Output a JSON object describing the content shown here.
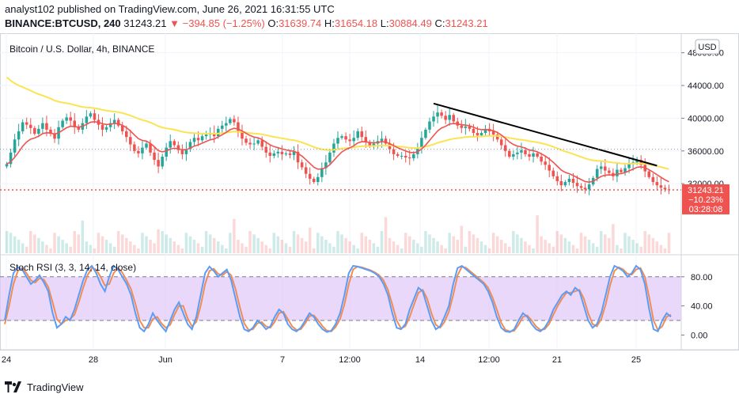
{
  "header": {
    "publisher_line": "analyst102 published on TradingView.com, June 26, 2021 16:31:55 UTC",
    "symbol": "BINANCE:BTCUSD, 240",
    "last": "31243.21",
    "change": "−394.85 (−1.25%)",
    "o_label": "O:",
    "o_value": "31639.74",
    "h_label": "H:",
    "h_value": "31654.18",
    "l_label": "L:",
    "l_value": "30884.49",
    "c_label": "C:",
    "c_value": "31243.21"
  },
  "main_pane": {
    "title": "Bitcoin / U.S. Dollar, 4h, BINANCE",
    "currency_button": "USD",
    "price_tag": {
      "price": "31243.21",
      "pct": "−10.23%",
      "countdown": "03:28:08"
    },
    "colors": {
      "up": "#26a69a",
      "down": "#ef5350",
      "ma_fast": "#ef5350",
      "ma_slow": "#fbe351",
      "trendline": "#000000"
    }
  },
  "rsi_pane": {
    "title": "Stoch RSI (3, 3, 14, 14, close)",
    "colors": {
      "k": "#5b9cf6",
      "d": "#f08d55",
      "band": "#e1c8fa"
    }
  },
  "footer": {
    "brand": "TradingView"
  },
  "chart_data": [
    {
      "type": "candlestick",
      "y_ticks": [
        48000,
        44000,
        40000,
        36000,
        32000
      ],
      "y_tick_labels": [
        "48000.00",
        "44000.00",
        "40000.00",
        "36000.00",
        "32000.00"
      ],
      "ylim": [
        23500,
        50000
      ],
      "x_tick_labels": [
        "24",
        "28",
        "Jun",
        "7",
        "12:00",
        "14",
        "12:00",
        "21",
        "25"
      ],
      "close": [
        34400,
        35800,
        37400,
        38400,
        39500,
        39200,
        38800,
        38100,
        38700,
        39400,
        38600,
        38100,
        37500,
        38900,
        39700,
        40100,
        39700,
        38900,
        38600,
        39400,
        40200,
        40600,
        39800,
        39200,
        38600,
        38900,
        39400,
        39800,
        39100,
        38400,
        37700,
        36800,
        36000,
        35700,
        36400,
        36900,
        35800,
        34900,
        34100,
        35300,
        36400,
        37200,
        36700,
        36100,
        35600,
        36200,
        37100,
        37600,
        37300,
        37800,
        38000,
        38200,
        37800,
        38700,
        39100,
        39400,
        39900,
        39500,
        38300,
        37500,
        37000,
        36800,
        36900,
        37300,
        36500,
        35800,
        35400,
        35700,
        35900,
        35600,
        35700,
        35500,
        35900,
        34600,
        34000,
        33200,
        32600,
        32200,
        32800,
        33900,
        34600,
        35800,
        36900,
        37600,
        37800,
        37400,
        37200,
        37600,
        38400,
        37700,
        37100,
        36600,
        36900,
        37200,
        37500,
        36900,
        36200,
        35600,
        35400,
        35400,
        35200,
        35100,
        35600,
        36400,
        37600,
        38600,
        39600,
        40200,
        40700,
        40300,
        39800,
        40400,
        39600,
        39100,
        38800,
        39000,
        38700,
        38200,
        37900,
        38200,
        38700,
        38400,
        38000,
        37400,
        36700,
        36000,
        35300,
        35600,
        35800,
        36100,
        35600,
        35300,
        35700,
        35300,
        34700,
        34300,
        33600,
        32900,
        32300,
        31800,
        32200,
        32600,
        32100,
        31700,
        31500,
        31300,
        31900,
        32700,
        33800,
        34100,
        33600,
        33300,
        32900,
        33700,
        33400,
        33900,
        34400,
        34600,
        34900,
        34300,
        33500,
        32800,
        32200,
        31800,
        31500,
        31300,
        31243
      ],
      "overlays": [
        "moving_average_fast",
        "moving_average_slow",
        "trendline"
      ]
    },
    {
      "type": "line",
      "name": "Stoch RSI",
      "y_ticks": [
        80,
        40,
        0
      ],
      "y_tick_labels": [
        "80.00",
        "40.00",
        "0.00"
      ],
      "ylim": [
        -18,
        108
      ],
      "band": [
        20,
        80
      ],
      "k": [
        20,
        55,
        85,
        93,
        90,
        80,
        70,
        75,
        82,
        72,
        60,
        30,
        10,
        15,
        25,
        20,
        35,
        55,
        75,
        90,
        95,
        85,
        70,
        60,
        80,
        95,
        90,
        80,
        70,
        55,
        30,
        10,
        5,
        15,
        30,
        20,
        12,
        5,
        20,
        35,
        45,
        30,
        15,
        8,
        25,
        55,
        85,
        94,
        88,
        80,
        85,
        90,
        75,
        50,
        25,
        8,
        5,
        10,
        20,
        15,
        8,
        12,
        25,
        35,
        30,
        15,
        8,
        5,
        10,
        20,
        30,
        25,
        15,
        8,
        4,
        6,
        15,
        30,
        55,
        85,
        95,
        94,
        92,
        90,
        88,
        85,
        80,
        70,
        55,
        30,
        10,
        8,
        15,
        35,
        50,
        65,
        60,
        40,
        20,
        8,
        12,
        25,
        40,
        70,
        92,
        95,
        90,
        85,
        80,
        75,
        70,
        60,
        45,
        25,
        10,
        5,
        4,
        8,
        20,
        30,
        25,
        15,
        8,
        5,
        10,
        20,
        35,
        45,
        55,
        60,
        55,
        65,
        60,
        40,
        20,
        10,
        15,
        30,
        55,
        80,
        95,
        92,
        88,
        80,
        85,
        95,
        90,
        70,
        35,
        8,
        5,
        20,
        30,
        25
      ],
      "d": [
        15,
        40,
        70,
        88,
        92,
        85,
        75,
        72,
        78,
        76,
        66,
        45,
        22,
        15,
        20,
        22,
        28,
        45,
        65,
        82,
        92,
        90,
        80,
        68,
        70,
        85,
        92,
        86,
        75,
        63,
        43,
        20,
        10,
        10,
        22,
        25,
        16,
        10,
        14,
        28,
        40,
        40,
        23,
        12,
        18,
        40,
        70,
        88,
        91,
        84,
        82,
        87,
        82,
        63,
        38,
        16,
        7,
        8,
        16,
        18,
        12,
        10,
        18,
        30,
        32,
        22,
        12,
        7,
        8,
        16,
        26,
        27,
        20,
        12,
        6,
        5,
        11,
        22,
        42,
        70,
        90,
        94,
        93,
        91,
        89,
        86,
        82,
        75,
        62,
        42,
        20,
        9,
        12,
        25,
        42,
        58,
        62,
        50,
        30,
        14,
        10,
        18,
        32,
        55,
        82,
        94,
        92,
        87,
        82,
        77,
        72,
        65,
        52,
        35,
        17,
        7,
        5,
        6,
        14,
        25,
        27,
        20,
        12,
        7,
        8,
        15,
        28,
        40,
        50,
        58,
        58,
        60,
        62,
        50,
        30,
        15,
        12,
        22,
        42,
        68,
        88,
        93,
        90,
        84,
        83,
        90,
        92,
        80,
        52,
        20,
        7,
        12,
        25,
        28
      ]
    }
  ]
}
